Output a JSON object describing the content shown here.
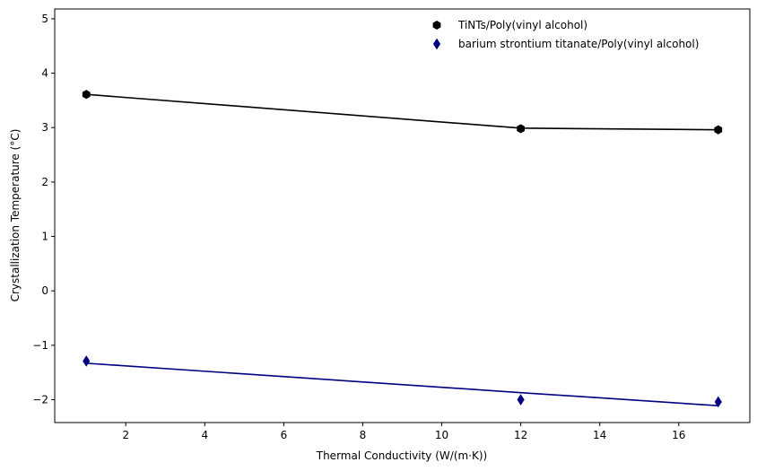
{
  "chart_data": {
    "type": "scatter",
    "title": "",
    "xlabel": "Thermal Conductivity (W/(m·K))",
    "ylabel": "Crystallization Temperature (°C)",
    "xlim": [
      0.2,
      17.8
    ],
    "ylim": [
      -2.42,
      5.18
    ],
    "xticks": [
      2,
      4,
      6,
      8,
      10,
      12,
      14,
      16
    ],
    "yticks": [
      -2,
      -1,
      0,
      1,
      2,
      3,
      4,
      5
    ],
    "grid": false,
    "legend_position": "top-right",
    "series": [
      {
        "name": "TiNTs/Poly(vinyl alcohol)",
        "marker": "hexagon",
        "color": "#000000",
        "points": [
          [
            1,
            3.61
          ],
          [
            12,
            2.98
          ],
          [
            17,
            2.96
          ]
        ],
        "fit_line": [
          [
            1,
            3.61
          ],
          [
            12,
            2.99
          ],
          [
            17,
            2.96
          ]
        ]
      },
      {
        "name": "barium strontium titanate/Poly(vinyl alcohol)",
        "marker": "thin_diamond",
        "color": "#000080",
        "points": [
          [
            1,
            -1.29
          ],
          [
            12,
            -2.0
          ],
          [
            17,
            -2.04
          ]
        ],
        "fit_line": [
          [
            1,
            -1.33
          ],
          [
            12,
            -1.87
          ],
          [
            17,
            -2.11
          ]
        ]
      }
    ]
  }
}
